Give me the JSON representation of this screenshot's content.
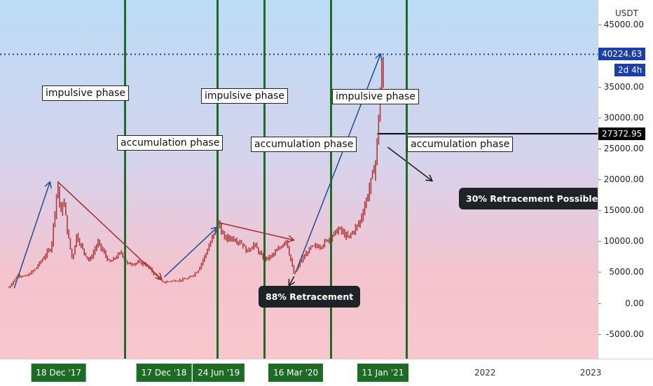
{
  "chart_data": {
    "type": "line",
    "subtype": "candlestick",
    "unit": "USDT",
    "interval": "2d 4h",
    "ylim": [
      -9000,
      49000
    ],
    "yticks": [
      45000,
      40000,
      35000,
      30000,
      25000,
      20000,
      15000,
      10000,
      5000,
      0,
      -5000
    ],
    "ytick_labels": [
      "45000.00",
      "40000.00",
      "35000.00",
      "30000.00",
      "25000.00",
      "20000.00",
      "15000.00",
      "10000.00",
      "5000.00",
      "0.00",
      "-5000.00"
    ],
    "x_range": [
      "2017-06-01",
      "2023-01-25"
    ],
    "current_price": 40224.63,
    "current_price_label": "40224.63",
    "level_price": 27372.95,
    "level_price_label": "27372.95",
    "price_series": [
      [
        "2017-07-01",
        2500
      ],
      [
        "2017-08-01",
        4500
      ],
      [
        "2017-09-01",
        4300
      ],
      [
        "2017-10-01",
        5500
      ],
      [
        "2017-11-01",
        7500
      ],
      [
        "2017-11-25",
        9000
      ],
      [
        "2017-12-17",
        19500
      ],
      [
        "2017-12-28",
        14000
      ],
      [
        "2018-01-06",
        17000
      ],
      [
        "2018-01-20",
        11500
      ],
      [
        "2018-02-06",
        6900
      ],
      [
        "2018-02-20",
        11000
      ],
      [
        "2018-03-15",
        8500
      ],
      [
        "2018-04-06",
        6800
      ],
      [
        "2018-05-05",
        9800
      ],
      [
        "2018-06-15",
        6500
      ],
      [
        "2018-07-25",
        8200
      ],
      [
        "2018-08-15",
        6300
      ],
      [
        "2018-09-15",
        6500
      ],
      [
        "2018-10-15",
        6400
      ],
      [
        "2018-11-20",
        4500
      ],
      [
        "2018-12-15",
        3300
      ],
      [
        "2019-01-15",
        3600
      ],
      [
        "2019-02-15",
        3700
      ],
      [
        "2019-03-15",
        4000
      ],
      [
        "2019-04-15",
        5200
      ],
      [
        "2019-05-15",
        8200
      ],
      [
        "2019-06-26",
        13000
      ],
      [
        "2019-07-15",
        10500
      ],
      [
        "2019-08-15",
        10500
      ],
      [
        "2019-09-15",
        9700
      ],
      [
        "2019-10-01",
        8300
      ],
      [
        "2019-10-26",
        9500
      ],
      [
        "2019-11-25",
        7300
      ],
      [
        "2019-12-15",
        7200
      ],
      [
        "2020-01-20",
        8700
      ],
      [
        "2020-02-14",
        10300
      ],
      [
        "2020-03-13",
        4500
      ],
      [
        "2020-04-01",
        6500
      ],
      [
        "2020-05-10",
        9000
      ],
      [
        "2020-06-15",
        9300
      ],
      [
        "2020-07-25",
        11000
      ],
      [
        "2020-08-15",
        12000
      ],
      [
        "2020-09-15",
        10500
      ],
      [
        "2020-10-25",
        13000
      ],
      [
        "2020-11-25",
        18000
      ],
      [
        "2020-12-20",
        23000
      ],
      [
        "2021-01-03",
        33000
      ],
      [
        "2021-01-08",
        40500
      ],
      [
        "2021-01-11",
        34000
      ],
      [
        "2021-01-16",
        36500
      ]
    ],
    "phase_lines": [
      "2017-12-18",
      "2018-12-17",
      "2019-06-24",
      "2020-03-16",
      "2021-01-11"
    ],
    "phase_line_labels": [
      "18 Dec '17",
      "17 Dec '18",
      "24 Jun '19",
      "16 Mar '20",
      "11 Jan '21"
    ],
    "year_labels": [
      {
        "date": "2022-01-01",
        "label": "2022"
      },
      {
        "date": "2023-01-01",
        "label": "2023"
      }
    ],
    "arrows": [
      {
        "color": "#1f4e8f",
        "from": [
          "2017-07-20",
          2400
        ],
        "to": [
          "2017-11-20",
          19500
        ]
      },
      {
        "color": "#a52a2a",
        "from": [
          "2017-12-20",
          19500
        ],
        "to": [
          "2018-12-10",
          3900
        ]
      },
      {
        "color": "#1f4e8f",
        "from": [
          "2018-12-20",
          4200
        ],
        "to": [
          "2019-06-20",
          12200
        ]
      },
      {
        "color": "#a52a2a",
        "from": [
          "2019-06-26",
          13000
        ],
        "to": [
          "2020-03-10",
          10200
        ]
      },
      {
        "color": "#1f4e8f",
        "from": [
          "2020-03-20",
          5200
        ],
        "to": [
          "2021-01-05",
          40200
        ]
      },
      {
        "color": "#1a1a1a",
        "from": [
          "2020-03-13",
          4300
        ],
        "to": [
          "2020-02-25",
          2900
        ]
      },
      {
        "color": "#1a1a1a",
        "from": [
          "2021-01-30",
          25200
        ],
        "to": [
          "2021-07-01",
          19800
        ]
      }
    ],
    "annotations": {
      "phase_1": "impulsive phase",
      "phase_2": "accumulation phase",
      "phase_3": "impulsive phase",
      "phase_4": "accumulation phase",
      "phase_5": "impulsive phase",
      "phase_6": "accumulation phase",
      "retracement_88": "88% Retracement",
      "retracement_30": "30% Retracement Possible"
    },
    "colors": {
      "phase_line": "#1e6b26",
      "current_price_tag": "#1b3fa8",
      "level_tag": "#000000",
      "candles": "#b03a3a",
      "arrow_up": "#1f4e8f",
      "arrow_down": "#a52a2a"
    }
  }
}
